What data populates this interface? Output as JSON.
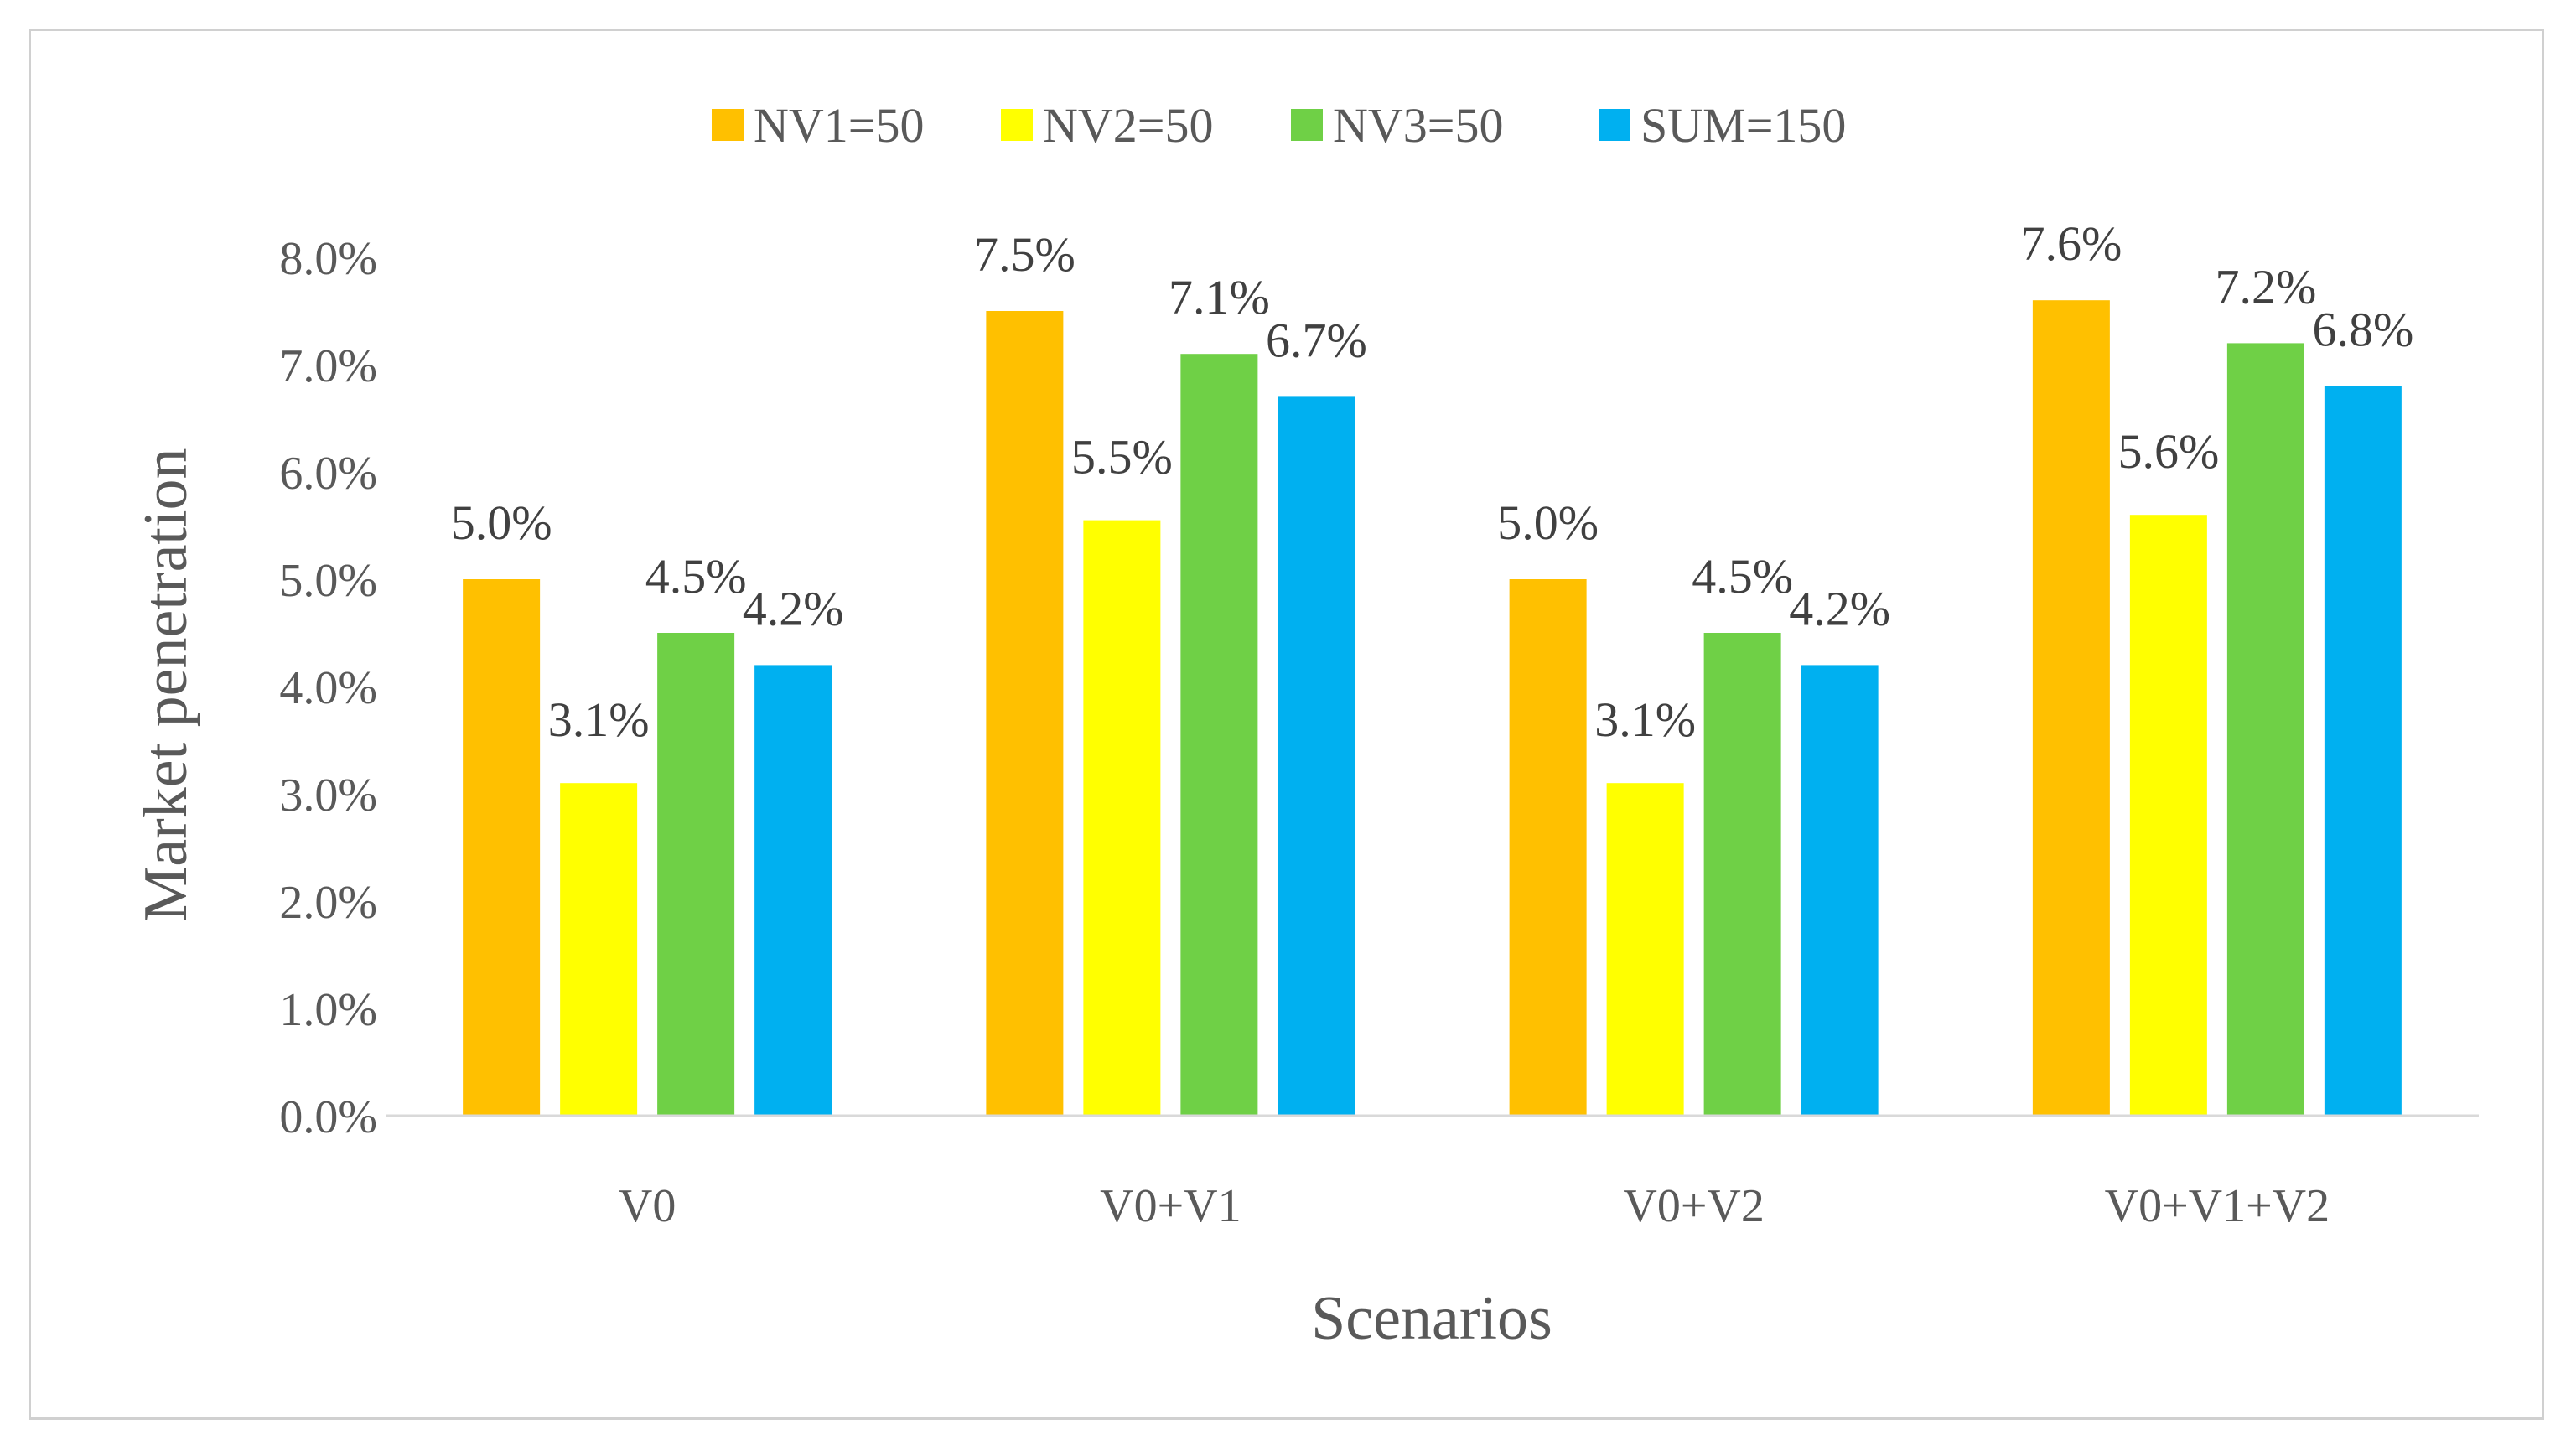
{
  "chart_data": {
    "type": "bar",
    "categories": [
      "V0",
      "V0+V1",
      "V0+V2",
      "V0+V1+V2"
    ],
    "series": [
      {
        "name": "NV1=50",
        "color": "#FFC000",
        "values": [
          5.0,
          7.5,
          5.0,
          7.6
        ],
        "labels": [
          "5.0%",
          "7.5%",
          "5.0%",
          "7.6%"
        ]
      },
      {
        "name": "NV2=50",
        "color": "#FFFF00",
        "values": [
          3.1,
          5.55,
          3.1,
          5.6
        ],
        "labels": [
          "3.1%",
          "5.5%",
          "3.1%",
          "5.6%"
        ]
      },
      {
        "name": "NV3=50",
        "color": "#6FD046",
        "values": [
          4.5,
          7.1,
          4.5,
          7.2
        ],
        "labels": [
          "4.5%",
          "7.1%",
          "4.5%",
          "7.2%"
        ]
      },
      {
        "name": "SUM=150",
        "color": "#00B0F0",
        "values": [
          4.2,
          6.7,
          4.2,
          6.8
        ],
        "labels": [
          "4.2%",
          "6.7%",
          "4.2%",
          "6.8%"
        ]
      }
    ],
    "xlabel": "Scenarios",
    "ylabel": "Market penetration",
    "ylim": [
      0,
      8
    ],
    "yticks": [
      0,
      1,
      2,
      3,
      4,
      5,
      6,
      7,
      8
    ],
    "ytick_labels": [
      "0.0%",
      "1.0%",
      "2.0%",
      "3.0%",
      "4.0%",
      "5.0%",
      "6.0%",
      "7.0%",
      "8.0%"
    ],
    "grid": false,
    "legend_position": "top-center"
  }
}
